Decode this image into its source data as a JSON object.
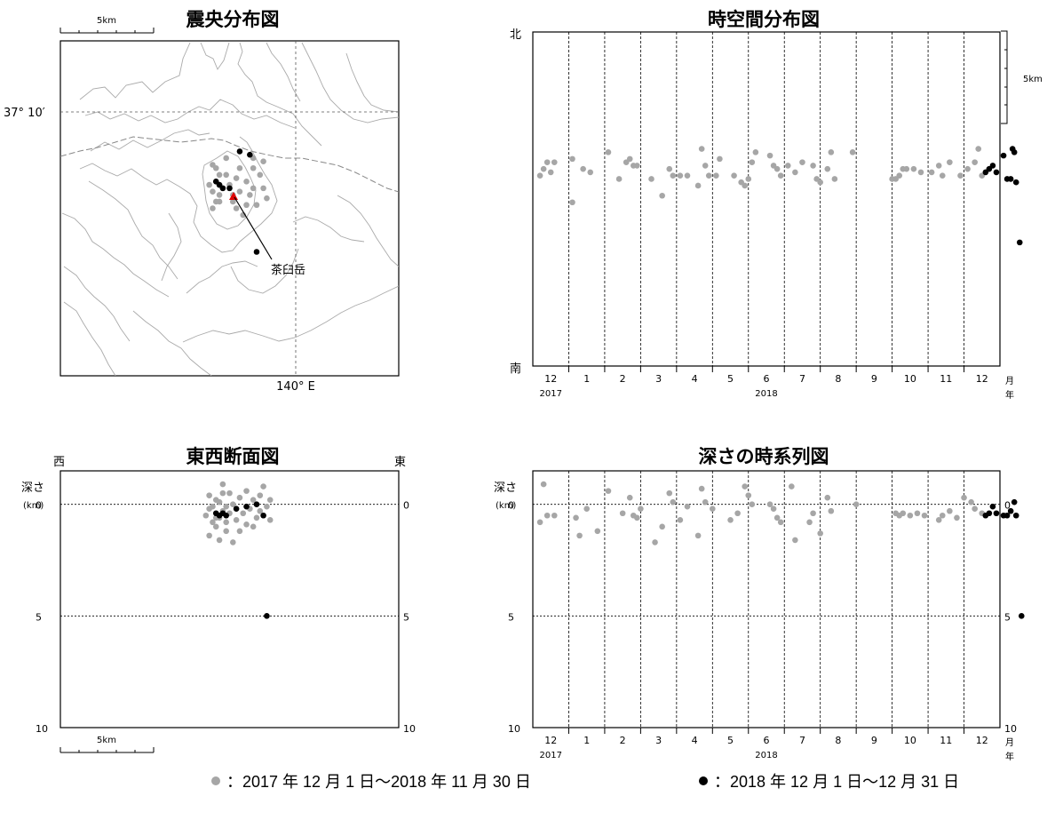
{
  "colors": {
    "before": "#a6a6a6",
    "recent": "#000000",
    "volcano": "#e00000",
    "map_line": "#aaaaaa"
  },
  "epicenter_map": {
    "title": "震央分布図",
    "scale_label": "5km",
    "lat_label": "37° 10′",
    "lon_label": "140° E",
    "volcano_label": "茶臼岳"
  },
  "spacetime": {
    "title": "時空間分布図",
    "north": "北",
    "south": "南",
    "scale_label": "5km"
  },
  "ew_section": {
    "title": "東西断面図",
    "west": "西",
    "east": "東",
    "depth_label": "深さ",
    "depth_unit": "(km)",
    "scale_label": "5km"
  },
  "depth_series": {
    "title": "深さの時系列図",
    "depth_label": "深さ",
    "depth_unit": "(km)"
  },
  "time_axis": {
    "months": [
      "12",
      "1",
      "2",
      "3",
      "4",
      "5",
      "6",
      "7",
      "8",
      "9",
      "10",
      "11",
      "12"
    ],
    "month_suffix": "月",
    "year_suffix": "年",
    "year_2017": "2017",
    "year_2018": "2018"
  },
  "legend": {
    "before_label": "：2017 年 12 月 1 日～2018 年 11 月 30 日",
    "recent_label": "：2018 年 12 月 1 日～12 月 31 日"
  },
  "chart_data": [
    {
      "type": "scatter",
      "title": "時空間分布図",
      "x_unit": "month index (0 = Dec 2017)",
      "y_unit": "south-north position (0 = 南, 1 = 北)",
      "xlim": [
        0,
        13
      ],
      "series": [
        {
          "points": [
            [
              0.2,
              0.57
            ],
            [
              0.3,
              0.59
            ],
            [
              0.4,
              0.61
            ],
            [
              0.5,
              0.58
            ],
            [
              0.6,
              0.61
            ],
            [
              1.1,
              0.62
            ],
            [
              1.1,
              0.49
            ],
            [
              1.4,
              0.59
            ],
            [
              1.6,
              0.58
            ],
            [
              2.1,
              0.64
            ],
            [
              2.4,
              0.56
            ],
            [
              2.6,
              0.61
            ],
            [
              2.7,
              0.62
            ],
            [
              2.8,
              0.6
            ],
            [
              2.9,
              0.6
            ],
            [
              3.3,
              0.56
            ],
            [
              3.6,
              0.51
            ],
            [
              3.8,
              0.59
            ],
            [
              3.9,
              0.57
            ],
            [
              4.1,
              0.57
            ],
            [
              4.3,
              0.57
            ],
            [
              4.6,
              0.54
            ],
            [
              4.7,
              0.65
            ],
            [
              4.8,
              0.6
            ],
            [
              4.9,
              0.57
            ],
            [
              5.1,
              0.57
            ],
            [
              5.2,
              0.62
            ],
            [
              5.6,
              0.57
            ],
            [
              5.8,
              0.55
            ],
            [
              5.9,
              0.54
            ],
            [
              6.0,
              0.56
            ],
            [
              6.1,
              0.61
            ],
            [
              6.2,
              0.64
            ],
            [
              6.6,
              0.63
            ],
            [
              6.7,
              0.6
            ],
            [
              6.8,
              0.59
            ],
            [
              6.9,
              0.57
            ],
            [
              7.1,
              0.6
            ],
            [
              7.3,
              0.58
            ],
            [
              7.5,
              0.61
            ],
            [
              7.8,
              0.6
            ],
            [
              7.9,
              0.56
            ],
            [
              8.0,
              0.55
            ],
            [
              8.2,
              0.59
            ],
            [
              8.3,
              0.64
            ],
            [
              8.4,
              0.56
            ],
            [
              8.9,
              0.64
            ],
            [
              10.0,
              0.56
            ],
            [
              10.1,
              0.56
            ],
            [
              10.2,
              0.57
            ],
            [
              10.3,
              0.59
            ],
            [
              10.4,
              0.59
            ],
            [
              10.6,
              0.59
            ],
            [
              10.8,
              0.58
            ],
            [
              11.1,
              0.58
            ],
            [
              11.3,
              0.6
            ],
            [
              11.4,
              0.57
            ],
            [
              11.6,
              0.61
            ],
            [
              11.9,
              0.57
            ],
            [
              12.1,
              0.59
            ],
            [
              12.3,
              0.61
            ],
            [
              12.4,
              0.65
            ],
            [
              12.5,
              0.57
            ]
          ]
        },
        {
          "points": [
            [
              12.6,
              0.58
            ],
            [
              12.7,
              0.59
            ],
            [
              12.8,
              0.6
            ],
            [
              12.9,
              0.58
            ],
            [
              13.1,
              0.63
            ],
            [
              13.2,
              0.56
            ],
            [
              13.3,
              0.56
            ],
            [
              13.35,
              0.65
            ],
            [
              13.4,
              0.64
            ],
            [
              13.45,
              0.55
            ],
            [
              13.55,
              0.37
            ]
          ]
        }
      ]
    },
    {
      "type": "scatter",
      "title": "深さの時系列図",
      "x_unit": "month index (0 = Dec 2017)",
      "y_unit": "depth (km)",
      "xlim": [
        0,
        13
      ],
      "ylim": [
        10,
        -1.5
      ],
      "y_ticks": [
        0,
        5,
        10
      ],
      "series": [
        {
          "points": [
            [
              0.2,
              0.8
            ],
            [
              0.3,
              -0.9
            ],
            [
              0.4,
              0.5
            ],
            [
              0.6,
              0.5
            ],
            [
              1.2,
              0.6
            ],
            [
              1.3,
              1.4
            ],
            [
              1.5,
              0.2
            ],
            [
              1.8,
              1.2
            ],
            [
              2.1,
              -0.6
            ],
            [
              2.5,
              0.4
            ],
            [
              2.7,
              -0.3
            ],
            [
              2.8,
              0.5
            ],
            [
              2.9,
              0.6
            ],
            [
              3.0,
              0.2
            ],
            [
              3.4,
              1.7
            ],
            [
              3.6,
              1.0
            ],
            [
              3.8,
              -0.5
            ],
            [
              3.9,
              -0.1
            ],
            [
              4.1,
              0.7
            ],
            [
              4.3,
              0.1
            ],
            [
              4.6,
              1.4
            ],
            [
              4.7,
              -0.7
            ],
            [
              4.8,
              -0.1
            ],
            [
              5.0,
              0.2
            ],
            [
              5.5,
              0.7
            ],
            [
              5.7,
              0.4
            ],
            [
              5.9,
              -0.8
            ],
            [
              6.0,
              -0.4
            ],
            [
              6.1,
              0.0
            ],
            [
              6.6,
              0.0
            ],
            [
              6.7,
              0.2
            ],
            [
              6.8,
              0.6
            ],
            [
              6.9,
              0.8
            ],
            [
              7.2,
              -0.8
            ],
            [
              7.3,
              1.6
            ],
            [
              7.7,
              0.8
            ],
            [
              7.8,
              0.4
            ],
            [
              8.0,
              1.3
            ],
            [
              8.2,
              -0.3
            ],
            [
              8.3,
              0.3
            ],
            [
              9.0,
              0.0
            ],
            [
              10.1,
              0.4
            ],
            [
              10.2,
              0.5
            ],
            [
              10.3,
              0.4
            ],
            [
              10.5,
              0.5
            ],
            [
              10.7,
              0.4
            ],
            [
              10.9,
              0.5
            ],
            [
              11.3,
              0.7
            ],
            [
              11.4,
              0.5
            ],
            [
              11.6,
              0.3
            ],
            [
              11.8,
              0.6
            ],
            [
              12.0,
              -0.3
            ],
            [
              12.2,
              -0.1
            ],
            [
              12.3,
              0.2
            ],
            [
              12.5,
              0.4
            ]
          ]
        },
        {
          "points": [
            [
              12.6,
              0.5
            ],
            [
              12.7,
              0.4
            ],
            [
              12.8,
              0.1
            ],
            [
              12.9,
              0.4
            ],
            [
              13.1,
              0.5
            ],
            [
              13.2,
              0.5
            ],
            [
              13.3,
              0.3
            ],
            [
              13.4,
              -0.1
            ],
            [
              13.45,
              0.5
            ],
            [
              13.6,
              5.0
            ]
          ]
        }
      ]
    },
    {
      "type": "scatter",
      "title": "東西断面図",
      "x_unit": "west-east position (0 = 西, 1 = 東)",
      "y_unit": "depth (km)",
      "xlim": [
        0,
        1
      ],
      "ylim": [
        10,
        -1.5
      ],
      "y_ticks": [
        0,
        5,
        10
      ],
      "series": [
        {
          "points": [
            [
              0.43,
              0.5
            ],
            [
              0.44,
              -0.4
            ],
            [
              0.44,
              1.4
            ],
            [
              0.45,
              0.8
            ],
            [
              0.45,
              0.1
            ],
            [
              0.46,
              1.0
            ],
            [
              0.46,
              -0.2
            ],
            [
              0.47,
              0.6
            ],
            [
              0.47,
              1.6
            ],
            [
              0.48,
              -0.5
            ],
            [
              0.48,
              0.3
            ],
            [
              0.48,
              -0.9
            ],
            [
              0.49,
              0.8
            ],
            [
              0.49,
              0.1
            ],
            [
              0.49,
              1.2
            ],
            [
              0.5,
              -0.5
            ],
            [
              0.5,
              0.4
            ],
            [
              0.51,
              1.7
            ],
            [
              0.51,
              0.0
            ],
            [
              0.52,
              0.7
            ],
            [
              0.53,
              -0.3
            ],
            [
              0.53,
              1.2
            ],
            [
              0.54,
              0.4
            ],
            [
              0.55,
              -0.6
            ],
            [
              0.55,
              0.9
            ],
            [
              0.56,
              0.2
            ],
            [
              0.57,
              1.0
            ],
            [
              0.57,
              -0.2
            ],
            [
              0.58,
              0.6
            ],
            [
              0.59,
              -0.4
            ],
            [
              0.59,
              0.3
            ],
            [
              0.6,
              -0.8
            ],
            [
              0.61,
              0.1
            ],
            [
              0.62,
              -0.2
            ],
            [
              0.62,
              0.7
            ],
            [
              0.44,
              0.2
            ],
            [
              0.46,
              0.6
            ],
            [
              0.47,
              -0.1
            ]
          ]
        },
        {
          "points": [
            [
              0.46,
              0.4
            ],
            [
              0.47,
              0.5
            ],
            [
              0.48,
              0.4
            ],
            [
              0.49,
              0.5
            ],
            [
              0.52,
              0.2
            ],
            [
              0.55,
              0.1
            ],
            [
              0.58,
              0.0
            ],
            [
              0.6,
              0.5
            ],
            [
              0.61,
              5.0
            ]
          ]
        }
      ]
    },
    {
      "type": "scatter",
      "title": "震央分布図",
      "x_unit": "west-east position (0 = left edge, 1 = right edge)",
      "y_unit": "north-south position (0 = top edge, 1 = bottom edge)",
      "xlim": [
        0,
        1
      ],
      "ylim": [
        0,
        1
      ],
      "series": [
        {
          "points": [
            [
              0.45,
              0.37
            ],
            [
              0.46,
              0.38
            ],
            [
              0.47,
              0.4
            ],
            [
              0.46,
              0.42
            ],
            [
              0.44,
              0.43
            ],
            [
              0.45,
              0.45
            ],
            [
              0.47,
              0.46
            ],
            [
              0.46,
              0.48
            ],
            [
              0.47,
              0.48
            ],
            [
              0.48,
              0.44
            ],
            [
              0.49,
              0.4
            ],
            [
              0.5,
              0.43
            ],
            [
              0.51,
              0.46
            ],
            [
              0.51,
              0.48
            ],
            [
              0.52,
              0.41
            ],
            [
              0.53,
              0.38
            ],
            [
              0.53,
              0.45
            ],
            [
              0.54,
              0.52
            ],
            [
              0.55,
              0.49
            ],
            [
              0.56,
              0.46
            ],
            [
              0.55,
              0.42
            ],
            [
              0.57,
              0.38
            ],
            [
              0.57,
              0.44
            ],
            [
              0.58,
              0.49
            ],
            [
              0.59,
              0.4
            ],
            [
              0.6,
              0.44
            ],
            [
              0.61,
              0.47
            ],
            [
              0.57,
              0.35
            ],
            [
              0.49,
              0.35
            ],
            [
              0.45,
              0.5
            ],
            [
              0.52,
              0.5
            ],
            [
              0.6,
              0.36
            ]
          ]
        },
        {
          "points": [
            [
              0.46,
              0.42
            ],
            [
              0.47,
              0.43
            ],
            [
              0.48,
              0.44
            ],
            [
              0.5,
              0.44
            ],
            [
              0.53,
              0.33
            ],
            [
              0.56,
              0.34
            ],
            [
              0.58,
              0.63
            ]
          ]
        }
      ]
    }
  ]
}
